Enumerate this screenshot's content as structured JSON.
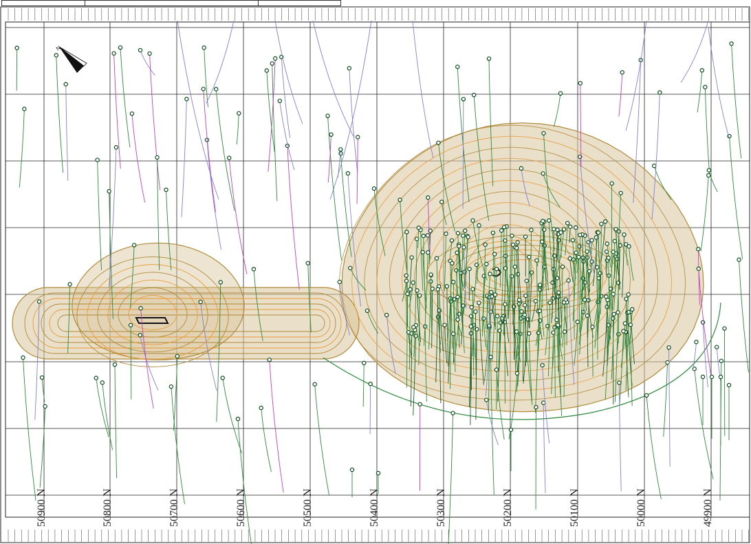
{
  "map": {
    "northing_labels": [
      "50900 N",
      "50800 N",
      "50700 N",
      "50600 N",
      "50500 N",
      "50400 N",
      "50300 N",
      "50200 N",
      "50100 N",
      "50000 N",
      "49900 N"
    ],
    "colors": {
      "grid": "#222222",
      "pit_contour": "#b08a3a",
      "pit_fill": "#d8c59a",
      "bench_inner": "#e89a3a",
      "drillhole": "#2c8a3a",
      "drillhole_dark": "#145a26",
      "drillhole_alt": "#8080d0",
      "drillhole_magenta": "#c040c0",
      "collar": "#0a4a1a"
    },
    "icons": {
      "north_arrow": "north-arrow-icon"
    }
  }
}
